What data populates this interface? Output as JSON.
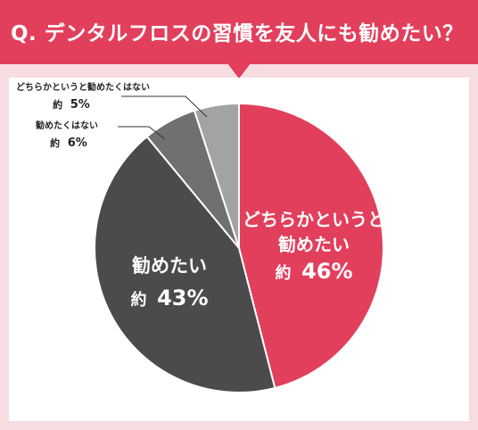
{
  "header": {
    "title": "Q. デンタルフロスの習慣を友人にも勧めたい？"
  },
  "colors": {
    "accent": "#e23f5c",
    "background": "#f7dde2"
  },
  "chart_data": {
    "type": "pie",
    "title": "Q. デンタルフロスの習慣を友人にも勧めたい？",
    "series": [
      {
        "values": [
          46,
          43,
          6,
          5
        ],
        "colors": [
          "#e23f5c",
          "#4b4b4b",
          "#707070",
          "#a3a3a3"
        ]
      }
    ],
    "categories": [
      "どちらかというと勧めたい",
      "勧めたい",
      "勧めたくはない",
      "どちらかというと勧めたくはない"
    ],
    "labels": [
      {
        "lines": [
          "どちらかというと",
          "勧めたい"
        ],
        "prefix": "約",
        "value": "46%"
      },
      {
        "lines": [
          "勧めたい"
        ],
        "prefix": "約",
        "value": "43%"
      },
      {
        "lines": [
          "勧めたくはない"
        ],
        "prefix": "約",
        "value": "6%"
      },
      {
        "lines": [
          "どちらかというと勧めたくはない"
        ],
        "prefix": "約",
        "value": "5%"
      }
    ],
    "start": "12 o'clock",
    "direction": "clockwise"
  }
}
